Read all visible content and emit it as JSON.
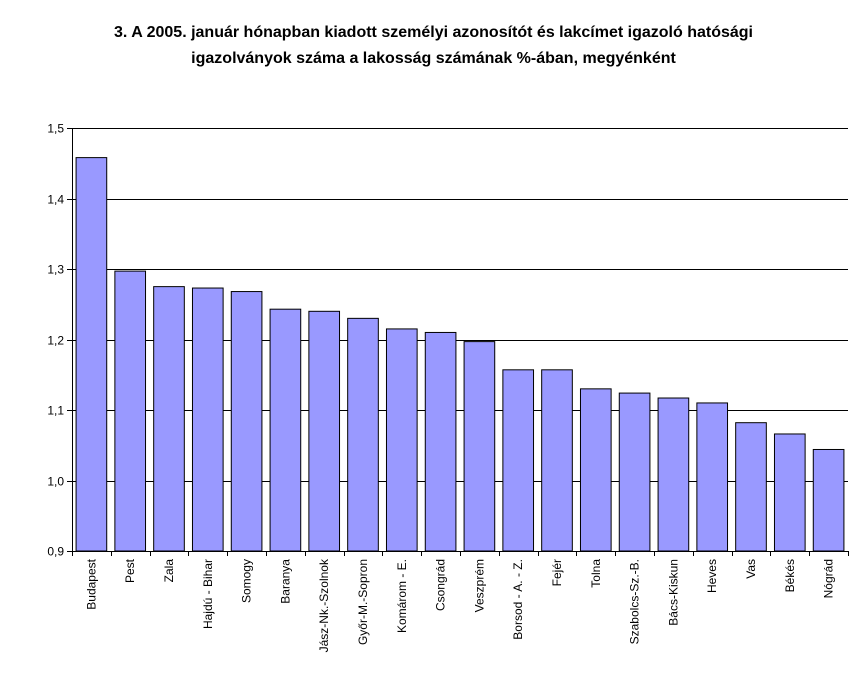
{
  "chart_data": {
    "type": "bar",
    "title_lines": [
      "3. A 2005.  január hónapban kiadott személyi azonosítót és lakcímet igazoló hatósági",
      "igazolványok száma a lakosság  számának %-ában, megyénként"
    ],
    "categories": [
      "Budapest",
      "Pest",
      "Zala",
      "Hajdú - Bihar",
      "Somogy",
      "Baranya",
      "Jász-Nk.-Szolnok",
      "Győr-M.-Sopron",
      "Komárom - E.",
      "Csongrád",
      "Veszprém",
      "Borsod - A. - Z.",
      "Fejér",
      "Tolna",
      "Szabolcs-Sz.-B.",
      "Bács-Kiskun",
      "Heves",
      "Vas",
      "Békés",
      "Nógrád"
    ],
    "values": [
      1.458,
      1.297,
      1.275,
      1.273,
      1.268,
      1.243,
      1.24,
      1.23,
      1.215,
      1.21,
      1.197,
      1.157,
      1.157,
      1.13,
      1.124,
      1.117,
      1.11,
      1.082,
      1.066,
      1.044
    ],
    "ylim": [
      0.9,
      1.5
    ],
    "yticks": [
      "0,9",
      "1,0",
      "1,1",
      "1,2",
      "1,3",
      "1,4",
      "1,5"
    ],
    "grid": true,
    "bar_color": "#9999ff",
    "xlabel": "",
    "ylabel": ""
  }
}
